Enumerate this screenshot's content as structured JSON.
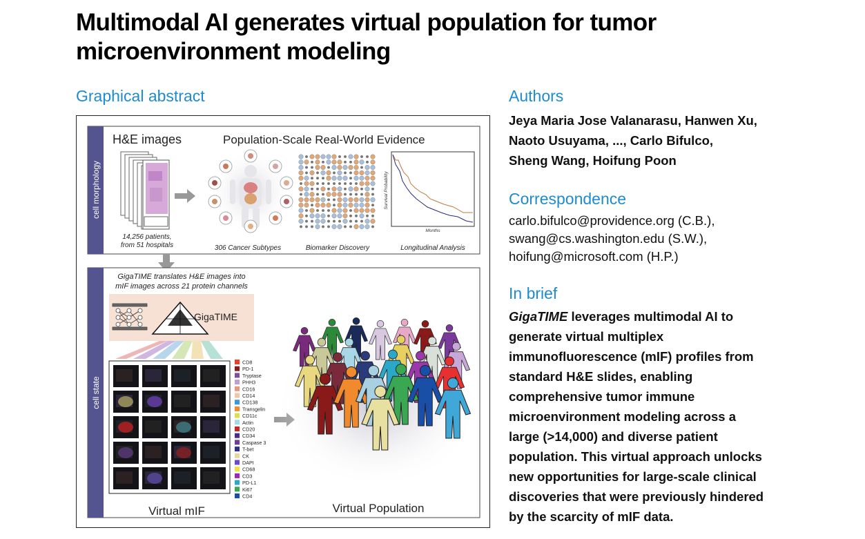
{
  "title": "Multimodal AI generates virtual population for tumor microenvironment modeling",
  "graphical_abstract": {
    "heading": "Graphical abstract",
    "side_labels": {
      "top": "cell morphology",
      "bottom": "cell state"
    },
    "he_title": "H&E images",
    "rwe_title": "Population-Scale Real-World Evidence",
    "patients_line1": "14,256 patients,",
    "patients_line2": "from 51 hospitals",
    "cancer_subtypes": "306 Cancer Subtypes",
    "biomarker": "Biomarker Discovery",
    "longitudinal": "Longitudinal Analysis",
    "survival_axis": "Survival Probability",
    "months_axis": "Months",
    "translate_line1": "GigaTIME translates H&E images into",
    "translate_line2": "mIF images across 21 protein channels",
    "model_name": "GigaTIME",
    "virtual_mif": "Virtual mIF",
    "virtual_population": "Virtual Population",
    "channels": [
      {
        "name": "CD8",
        "color": "#e8402b"
      },
      {
        "name": "PD-1",
        "color": "#8a1a1a"
      },
      {
        "name": "Tryptase",
        "color": "#7a4f9c"
      },
      {
        "name": "PHH3",
        "color": "#b9a1cf"
      },
      {
        "name": "CD16",
        "color": "#e7977a"
      },
      {
        "name": "CD14",
        "color": "#f0c5a8"
      },
      {
        "name": "CD138",
        "color": "#3a9ad9"
      },
      {
        "name": "Transgelin",
        "color": "#f08a2c"
      },
      {
        "name": "CD11c",
        "color": "#d8e04a"
      },
      {
        "name": "Actin",
        "color": "#a8d8e8"
      },
      {
        "name": "CD20",
        "color": "#c62828"
      },
      {
        "name": "CD34",
        "color": "#4a2a8a"
      },
      {
        "name": "Caspase 3",
        "color": "#6a3f9a"
      },
      {
        "name": "T-bet",
        "color": "#2e2e8e"
      },
      {
        "name": "CK",
        "color": "#e8d8a0"
      },
      {
        "name": "DAPI",
        "color": "#6f4ac8"
      },
      {
        "name": "CD68",
        "color": "#f0e040"
      },
      {
        "name": "CD3",
        "color": "#9c27b0"
      },
      {
        "name": "PD-L1",
        "color": "#2aa8c8"
      },
      {
        "name": "Ki67",
        "color": "#3aa852"
      },
      {
        "name": "CD4",
        "color": "#1a4fa8"
      }
    ]
  },
  "authors": {
    "heading": "Authors",
    "lines": [
      "Jeya Maria Jose Valanarasu, Hanwen Xu,",
      "Naoto Usuyama, ..., Carlo Bifulco,",
      "Sheng Wang, Hoifung Poon"
    ]
  },
  "correspondence": {
    "heading": "Correspondence",
    "lines": [
      "carlo.bifulco@providence.org (C.B.),",
      "swang@cs.washington.edu (S.W.),",
      "hoifung@microsoft.com (H.P.)"
    ]
  },
  "in_brief": {
    "heading": "In brief",
    "lead_italic": "GigaTIME",
    "lines": [
      " leverages multimodal AI to",
      "generate virtual multiplex",
      "immunofluorescence (mIF) profiles from",
      "standard H&E slides, enabling",
      "comprehensive tumor immune",
      "microenvironment modeling across a",
      "large (>14,000) and diverse patient",
      "population. This virtual approach unlocks",
      "new opportunities for large-scale clinical",
      "discoveries that were previously hindered",
      "by the scarcity of mIF data."
    ]
  }
}
